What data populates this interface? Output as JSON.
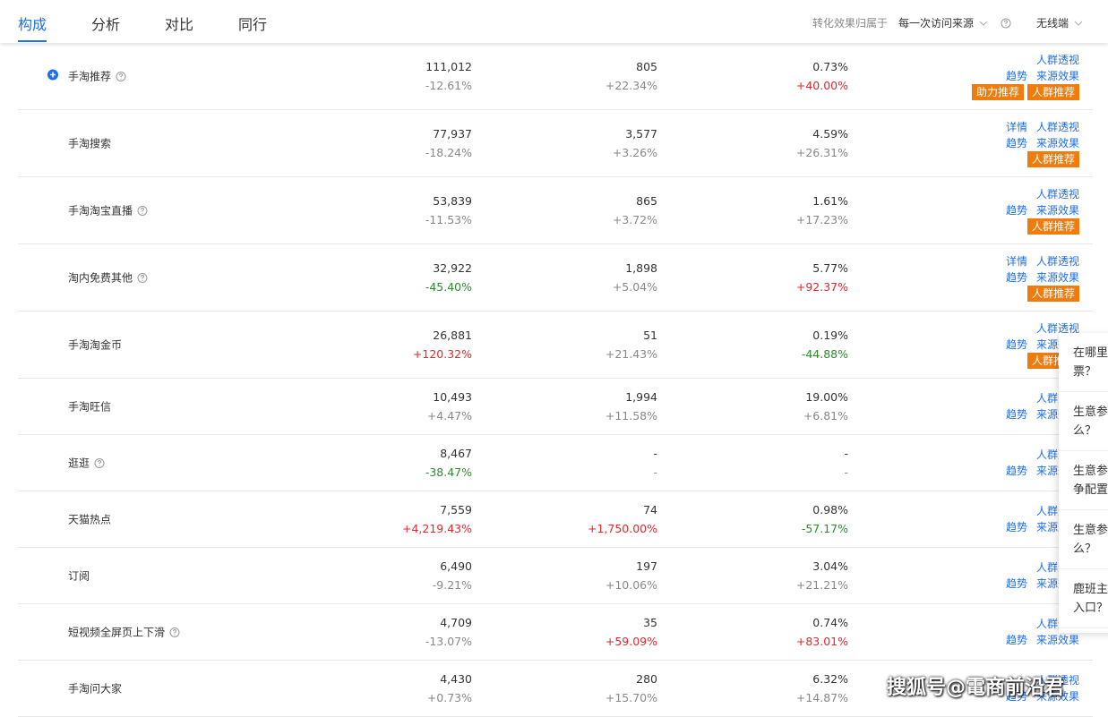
{
  "tabs": {
    "items": [
      "构成",
      "分析",
      "对比",
      "同行"
    ],
    "active": 0
  },
  "toolbar": {
    "label": "转化效果归属于",
    "attribution": "每一次访问来源",
    "device": "无线端"
  },
  "rows": [
    {
      "name": "手淘推荐",
      "help": true,
      "expand": true,
      "metrics": [
        {
          "value": "111,012",
          "change": "-12.61%",
          "change_color": "#888888"
        },
        {
          "value": "805",
          "change": "+22.34%",
          "change_color": "#888888"
        },
        {
          "value": "0.73%",
          "change": "+40.00%",
          "change_color": "#e0282e"
        }
      ],
      "links": [
        [
          "人群透视"
        ],
        [
          "趋势",
          "来源效果"
        ]
      ],
      "buttons": [
        "助力推荐",
        "人群推荐"
      ]
    },
    {
      "name": "手淘搜索",
      "help": false,
      "expand": false,
      "metrics": [
        {
          "value": "77,937",
          "change": "-18.24%",
          "change_color": "#888888"
        },
        {
          "value": "3,577",
          "change": "+3.26%",
          "change_color": "#888888"
        },
        {
          "value": "4.59%",
          "change": "+26.31%",
          "change_color": "#888888"
        }
      ],
      "links": [
        [
          "详情",
          "人群透视"
        ],
        [
          "趋势",
          "来源效果"
        ]
      ],
      "buttons": [
        "人群推荐"
      ]
    },
    {
      "name": "手淘淘宝直播",
      "help": true,
      "expand": false,
      "metrics": [
        {
          "value": "53,839",
          "change": "-11.53%",
          "change_color": "#888888"
        },
        {
          "value": "865",
          "change": "+3.72%",
          "change_color": "#888888"
        },
        {
          "value": "1.61%",
          "change": "+17.23%",
          "change_color": "#888888"
        }
      ],
      "links": [
        [
          "人群透视"
        ],
        [
          "趋势",
          "来源效果"
        ]
      ],
      "buttons": [
        "人群推荐"
      ]
    },
    {
      "name": "淘内免费其他",
      "help": true,
      "expand": false,
      "metrics": [
        {
          "value": "32,922",
          "change": "-45.40%",
          "change_color": "#2e8b2e"
        },
        {
          "value": "1,898",
          "change": "+5.04%",
          "change_color": "#888888"
        },
        {
          "value": "5.77%",
          "change": "+92.37%",
          "change_color": "#e0282e"
        }
      ],
      "links": [
        [
          "详情",
          "人群透视"
        ],
        [
          "趋势",
          "来源效果"
        ]
      ],
      "buttons": [
        "人群推荐"
      ]
    },
    {
      "name": "手淘淘金币",
      "help": false,
      "expand": false,
      "metrics": [
        {
          "value": "26,881",
          "change": "+120.32%",
          "change_color": "#e0282e"
        },
        {
          "value": "51",
          "change": "+21.43%",
          "change_color": "#888888"
        },
        {
          "value": "0.19%",
          "change": "-44.88%",
          "change_color": "#2e8b2e"
        }
      ],
      "links": [
        [
          "人群透视"
        ],
        [
          "趋势",
          "来源效果"
        ]
      ],
      "buttons": [
        "人群推荐"
      ]
    },
    {
      "name": "手淘旺信",
      "help": false,
      "expand": false,
      "metrics": [
        {
          "value": "10,493",
          "change": "+4.47%",
          "change_color": "#888888"
        },
        {
          "value": "1,994",
          "change": "+11.58%",
          "change_color": "#888888"
        },
        {
          "value": "19.00%",
          "change": "+6.81%",
          "change_color": "#888888"
        }
      ],
      "links": [
        [
          "人群透视"
        ],
        [
          "趋势",
          "来源效果"
        ]
      ],
      "buttons": []
    },
    {
      "name": "逛逛",
      "help": true,
      "expand": false,
      "metrics": [
        {
          "value": "8,467",
          "change": "-38.47%",
          "change_color": "#2e8b2e"
        },
        {
          "value": "-",
          "change": "-",
          "change_color": "#888888"
        },
        {
          "value": "-",
          "change": "-",
          "change_color": "#888888"
        }
      ],
      "links": [
        [
          "人群透视"
        ],
        [
          "趋势",
          "来源效果"
        ]
      ],
      "buttons": []
    },
    {
      "name": "天猫热点",
      "help": false,
      "expand": false,
      "metrics": [
        {
          "value": "7,559",
          "change": "+4,219.43%",
          "change_color": "#e0282e"
        },
        {
          "value": "74",
          "change": "+1,750.00%",
          "change_color": "#e0282e"
        },
        {
          "value": "0.98%",
          "change": "-57.17%",
          "change_color": "#2e8b2e"
        }
      ],
      "links": [
        [
          "人群透视"
        ],
        [
          "趋势",
          "来源效果"
        ]
      ],
      "buttons": []
    },
    {
      "name": "订阅",
      "help": false,
      "expand": false,
      "metrics": [
        {
          "value": "6,490",
          "change": "-9.21%",
          "change_color": "#888888"
        },
        {
          "value": "197",
          "change": "+10.06%",
          "change_color": "#888888"
        },
        {
          "value": "3.04%",
          "change": "+21.21%",
          "change_color": "#888888"
        }
      ],
      "links": [
        [
          "人群透视"
        ],
        [
          "趋势",
          "来源效果"
        ]
      ],
      "buttons": []
    },
    {
      "name": "短视频全屏页上下滑",
      "help": true,
      "expand": false,
      "metrics": [
        {
          "value": "4,709",
          "change": "-13.07%",
          "change_color": "#888888"
        },
        {
          "value": "35",
          "change": "+59.09%",
          "change_color": "#e0282e"
        },
        {
          "value": "0.74%",
          "change": "+83.01%",
          "change_color": "#e0282e"
        }
      ],
      "links": [
        [
          "人群透视"
        ],
        [
          "趋势",
          "来源效果"
        ]
      ],
      "buttons": []
    },
    {
      "name": "手淘问大家",
      "help": false,
      "expand": false,
      "metrics": [
        {
          "value": "4,430",
          "change": "+0.73%",
          "change_color": "#888888"
        },
        {
          "value": "280",
          "change": "+15.70%",
          "change_color": "#888888"
        },
        {
          "value": "6.32%",
          "change": "+14.87%",
          "change_color": "#888888"
        }
      ],
      "links": [
        [
          "人群透视"
        ],
        [
          "趋势",
          "来源效果"
        ]
      ],
      "buttons": []
    }
  ],
  "popup": {
    "items": [
      [
        "在哪里",
        "票？"
      ],
      [
        "生意参",
        "么？"
      ],
      [
        "生意参",
        "争配置"
      ],
      [
        "生意参",
        "么？"
      ],
      [
        "鹿班主",
        "入口？"
      ]
    ]
  },
  "watermark": "搜狐号@電商前沿君"
}
